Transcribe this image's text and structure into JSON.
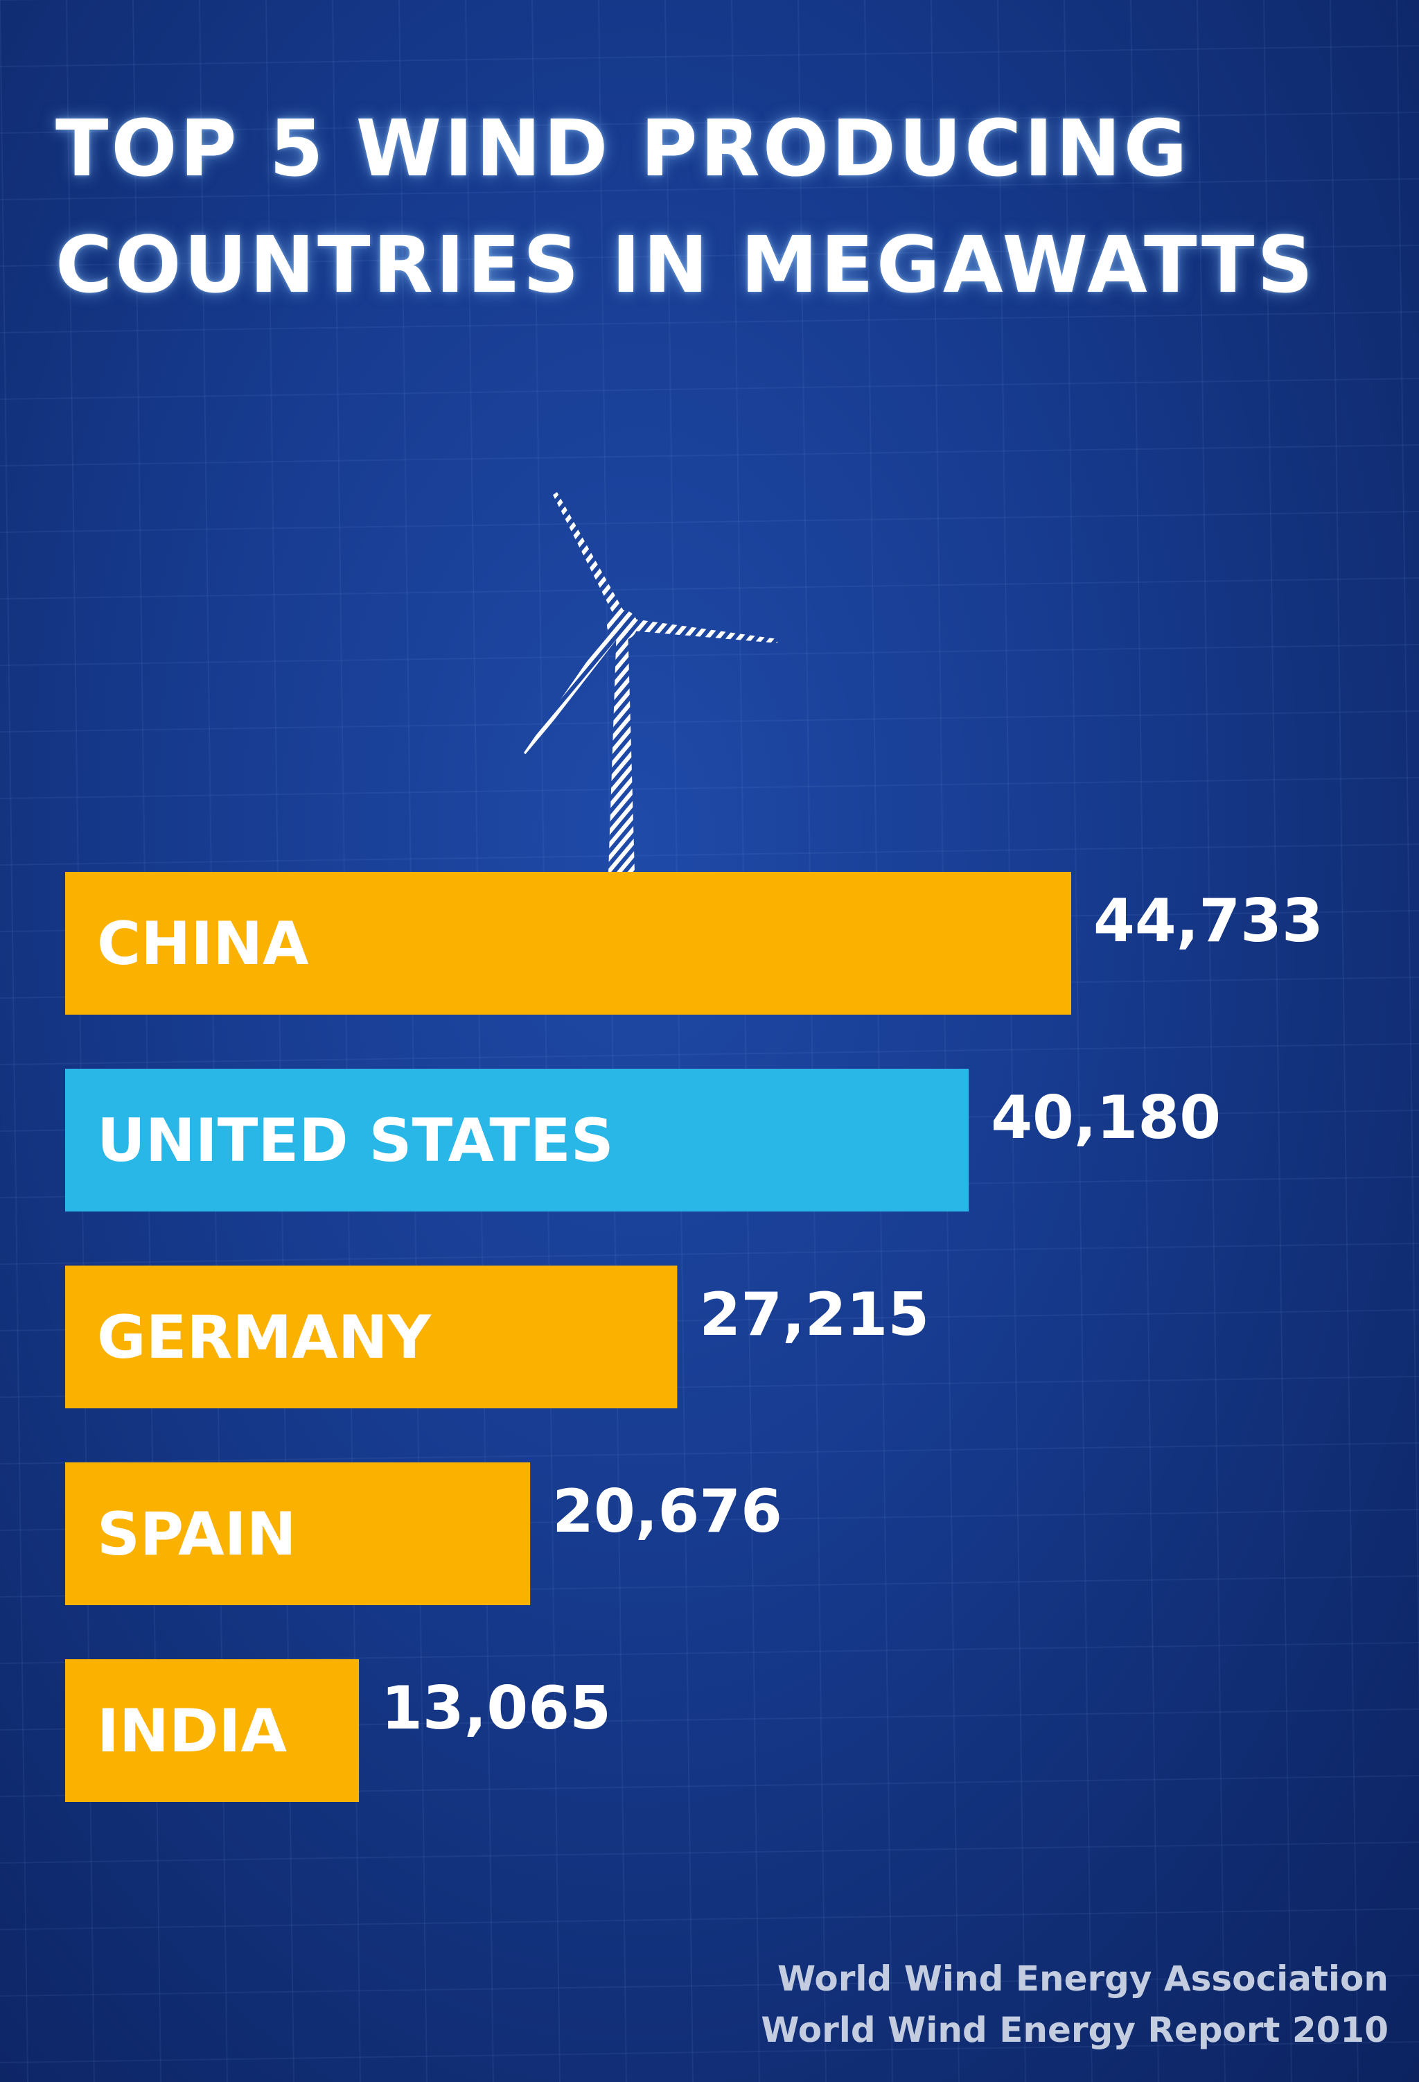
{
  "title_lines": [
    "TOP 5 WIND PRODUCING",
    "COUNTRIES IN MEGAWATTS"
  ],
  "source": {
    "line1": "World Wind Energy Association",
    "line2": "World Wind Energy Report 2010"
  },
  "colors": {
    "background": "#173b8f",
    "bar_default": "#fbb100",
    "bar_highlight": "#29b7e8",
    "text": "#ffffff",
    "source_text": "#c4cde0"
  },
  "icons": [
    "wind-turbine-icon"
  ],
  "chart_data": {
    "type": "bar",
    "orientation": "horizontal",
    "title": "TOP 5 WIND PRODUCING COUNTRIES IN MEGAWATTS",
    "categories": [
      "CHINA",
      "UNITED STATES",
      "GERMANY",
      "SPAIN",
      "INDIA"
    ],
    "values": [
      44733,
      40180,
      27215,
      20676,
      13065
    ],
    "value_labels": [
      "44,733",
      "40,180",
      "27,215",
      "20,676",
      "13,065"
    ],
    "highlight_category": "UNITED STATES",
    "grid": false,
    "legend": "none"
  }
}
